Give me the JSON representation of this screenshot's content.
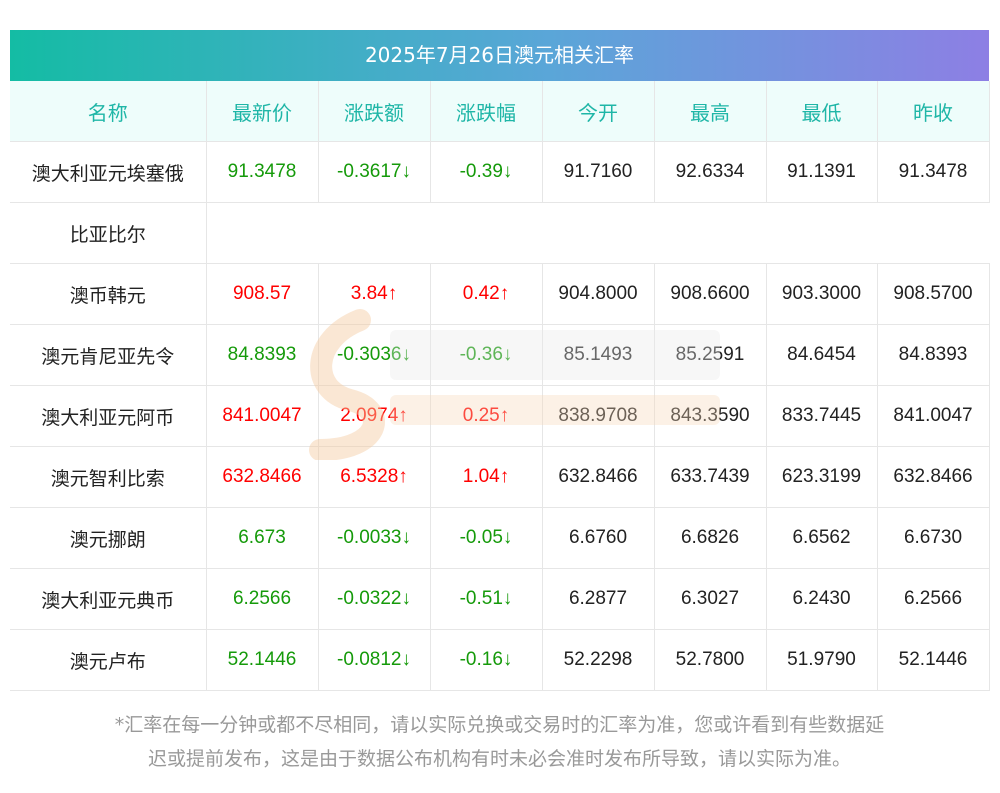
{
  "title": "2025年7月26日澳元相关汇率",
  "headers": [
    "名称",
    "最新价",
    "涨跌额",
    "涨跌幅",
    "今开",
    "最高",
    "最低",
    "昨收"
  ],
  "rows": [
    {
      "name_line1": "澳大利亚元埃塞俄",
      "name_line2": "比亚比尔",
      "latest": "91.3478",
      "change": "-0.3617↓",
      "pct": "-0.39↓",
      "open": "91.7160",
      "high": "92.6334",
      "low": "91.1391",
      "prev": "91.3478",
      "trend": "down"
    },
    {
      "name": "澳币韩元",
      "latest": "908.57",
      "change": "3.84↑",
      "pct": "0.42↑",
      "open": "904.8000",
      "high": "908.6600",
      "low": "903.3000",
      "prev": "908.5700",
      "trend": "up"
    },
    {
      "name": "澳元肯尼亚先令",
      "latest": "84.8393",
      "change": "-0.3036↓",
      "pct": "-0.36↓",
      "open": "85.1493",
      "high": "85.2591",
      "low": "84.6454",
      "prev": "84.8393",
      "trend": "down"
    },
    {
      "name": "澳大利亚元阿币",
      "latest": "841.0047",
      "change": "2.0974↑",
      "pct": "0.25↑",
      "open": "838.9708",
      "high": "843.3590",
      "low": "833.7445",
      "prev": "841.0047",
      "trend": "up"
    },
    {
      "name": "澳元智利比索",
      "latest": "632.8466",
      "change": "6.5328↑",
      "pct": "1.04↑",
      "open": "632.8466",
      "high": "633.7439",
      "low": "623.3199",
      "prev": "632.8466",
      "trend": "up"
    },
    {
      "name": "澳元挪朗",
      "latest": "6.673",
      "change": "-0.0033↓",
      "pct": "-0.05↓",
      "open": "6.6760",
      "high": "6.6826",
      "low": "6.6562",
      "prev": "6.6730",
      "trend": "down"
    },
    {
      "name": "澳大利亚元典币",
      "latest": "6.2566",
      "change": "-0.0322↓",
      "pct": "-0.51↓",
      "open": "6.2877",
      "high": "6.3027",
      "low": "6.2430",
      "prev": "6.2566",
      "trend": "down"
    },
    {
      "name": "澳元卢布",
      "latest": "52.1446",
      "change": "-0.0812↓",
      "pct": "-0.16↓",
      "open": "52.2298",
      "high": "52.7800",
      "low": "51.9790",
      "prev": "52.1446",
      "trend": "down"
    }
  ],
  "footer": {
    "line1": "*汇率在每一分钟或都不尽相同，请以实际兑换或交易时的汇率为准，您或许看到有些数据延",
    "line2": "迟或提前发布，这是由于数据公布机构有时未必会准时发布所导致，请以实际为准。"
  },
  "colors": {
    "up": "#ff0000",
    "down": "#159a0a",
    "header_text": "#1fb6a7",
    "header_bg": "#eefdfb",
    "title_gradient_start": "#14bca4",
    "title_gradient_end": "#8d7fe4"
  },
  "watermark_name": "southmoney-watermark"
}
